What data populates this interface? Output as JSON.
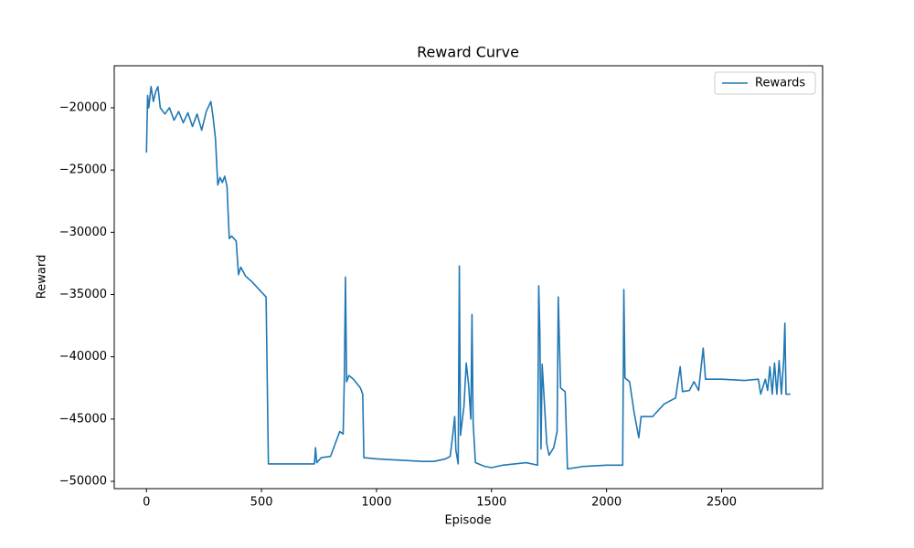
{
  "chart_data": {
    "type": "line",
    "title": "Reward Curve",
    "x_label": "Episode",
    "y_label": "Reward",
    "x": [
      0,
      5,
      10,
      20,
      30,
      40,
      50,
      60,
      80,
      100,
      120,
      140,
      160,
      180,
      200,
      220,
      240,
      260,
      280,
      290,
      300,
      310,
      320,
      330,
      340,
      350,
      360,
      370,
      380,
      390,
      400,
      410,
      430,
      460,
      490,
      520,
      530,
      600,
      700,
      730,
      735,
      740,
      760,
      800,
      820,
      840,
      855,
      860,
      865,
      870,
      880,
      900,
      930,
      940,
      945,
      1000,
      1100,
      1200,
      1250,
      1300,
      1320,
      1330,
      1340,
      1345,
      1355,
      1360,
      1365,
      1380,
      1390,
      1400,
      1410,
      1415,
      1420,
      1430,
      1470,
      1500,
      1550,
      1600,
      1650,
      1700,
      1705,
      1710,
      1715,
      1720,
      1740,
      1750,
      1770,
      1785,
      1790,
      1800,
      1820,
      1830,
      1900,
      2000,
      2070,
      2075,
      2080,
      2100,
      2120,
      2140,
      2150,
      2200,
      2250,
      2300,
      2320,
      2330,
      2360,
      2380,
      2400,
      2420,
      2430,
      2500,
      2600,
      2660,
      2670,
      2690,
      2700,
      2710,
      2720,
      2730,
      2740,
      2750,
      2760,
      2770,
      2775,
      2780,
      2799
    ],
    "series": [
      {
        "name": "Rewards",
        "color": "#1f77b4",
        "values": [
          -23600,
          -19000,
          -20000,
          -18300,
          -19500,
          -18700,
          -18300,
          -20000,
          -20500,
          -20000,
          -21000,
          -20300,
          -21200,
          -20400,
          -21500,
          -20500,
          -21800,
          -20300,
          -19500,
          -20800,
          -22500,
          -26200,
          -25600,
          -26000,
          -25500,
          -26300,
          -30500,
          -30300,
          -30500,
          -30700,
          -33400,
          -32800,
          -33500,
          -34000,
          -34600,
          -35200,
          -48600,
          -48600,
          -48600,
          -48600,
          -47300,
          -48500,
          -48100,
          -48000,
          -47000,
          -46000,
          -46200,
          -41800,
          -33600,
          -42000,
          -41500,
          -41800,
          -42500,
          -43000,
          -48100,
          -48200,
          -48300,
          -48400,
          -48400,
          -48200,
          -48000,
          -46500,
          -44800,
          -47500,
          -48600,
          -32700,
          -46300,
          -44000,
          -40500,
          -42200,
          -45000,
          -36600,
          -45300,
          -48500,
          -48800,
          -48900,
          -48700,
          -48600,
          -48500,
          -48700,
          -34300,
          -38000,
          -47400,
          -40600,
          -47000,
          -47900,
          -47300,
          -46000,
          -35200,
          -42500,
          -42800,
          -49000,
          -48800,
          -48700,
          -48700,
          -34600,
          -41700,
          -42000,
          -44500,
          -46500,
          -44800,
          -44800,
          -43800,
          -43300,
          -40800,
          -42800,
          -42700,
          -42000,
          -42700,
          -39300,
          -41800,
          -41800,
          -41900,
          -41800,
          -43000,
          -41800,
          -42700,
          -40800,
          -43000,
          -40500,
          -43000,
          -40300,
          -43000,
          -40200,
          -37300,
          -43000,
          -43000
        ]
      }
    ],
    "xlim": [
      -140,
      2939
    ],
    "ylim": [
      -50587,
      -16625
    ],
    "xticks": [
      0,
      500,
      1000,
      1500,
      2000,
      2500
    ],
    "yticks": [
      {
        "value": -50000,
        "label": "−50000"
      },
      {
        "value": -45000,
        "label": "−45000"
      },
      {
        "value": -40000,
        "label": "−40000"
      },
      {
        "value": -35000,
        "label": "−35000"
      },
      {
        "value": -30000,
        "label": "−30000"
      },
      {
        "value": -25000,
        "label": "−25000"
      },
      {
        "value": -20000,
        "label": "−20000"
      }
    ],
    "legend": "upper right",
    "grid": false
  }
}
